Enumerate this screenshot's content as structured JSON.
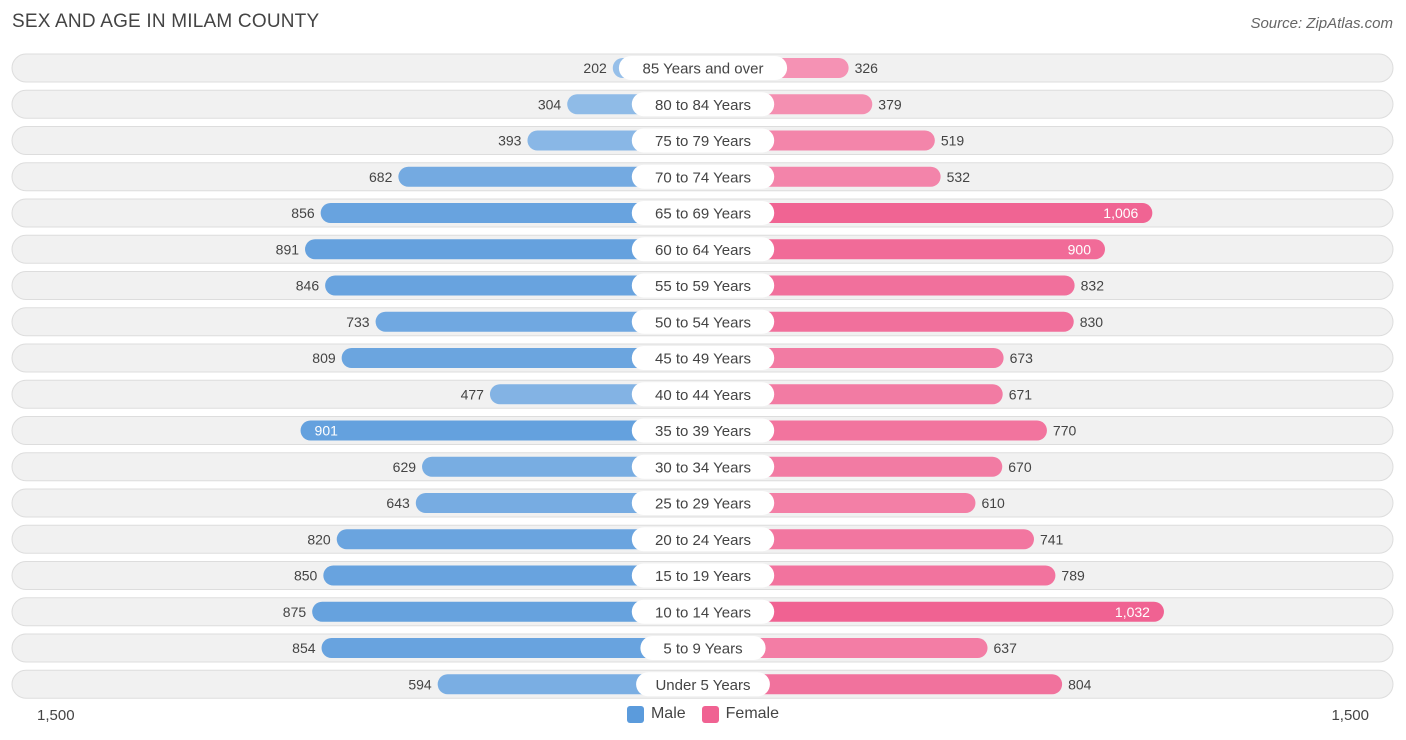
{
  "title": "SEX AND AGE IN MILAM COUNTY",
  "source": "Source: ZipAtlas.com",
  "axis": {
    "left_label": "1,500",
    "right_label": "1,500"
  },
  "legend": {
    "male_label": "Male",
    "female_label": "Female"
  },
  "colors": {
    "male": "#5b9bdc",
    "female": "#f06292",
    "row_bg": "#f1f1f1",
    "row_border": "#dddddd"
  },
  "chart_data": {
    "type": "bar",
    "orientation": "horizontal-diverging",
    "categories": [
      "85 Years and over",
      "80 to 84 Years",
      "75 to 79 Years",
      "70 to 74 Years",
      "65 to 69 Years",
      "60 to 64 Years",
      "55 to 59 Years",
      "50 to 54 Years",
      "45 to 49 Years",
      "40 to 44 Years",
      "35 to 39 Years",
      "30 to 34 Years",
      "25 to 29 Years",
      "20 to 24 Years",
      "15 to 19 Years",
      "10 to 14 Years",
      "5 to 9 Years",
      "Under 5 Years"
    ],
    "series": [
      {
        "name": "Male",
        "values": [
          202,
          304,
          393,
          682,
          856,
          891,
          846,
          733,
          809,
          477,
          901,
          629,
          643,
          820,
          850,
          875,
          854,
          594
        ],
        "labels": [
          "202",
          "304",
          "393",
          "682",
          "856",
          "891",
          "846",
          "733",
          "809",
          "477",
          "901",
          "629",
          "643",
          "820",
          "850",
          "875",
          "854",
          "594"
        ]
      },
      {
        "name": "Female",
        "values": [
          326,
          379,
          519,
          532,
          1006,
          900,
          832,
          830,
          673,
          671,
          770,
          670,
          610,
          741,
          789,
          1032,
          637,
          804
        ],
        "labels": [
          "326",
          "379",
          "519",
          "532",
          "1,006",
          "900",
          "832",
          "830",
          "673",
          "671",
          "770",
          "670",
          "610",
          "741",
          "789",
          "1,032",
          "637",
          "804"
        ]
      }
    ],
    "xlim": [
      0,
      1500
    ],
    "legend_position": "bottom"
  }
}
